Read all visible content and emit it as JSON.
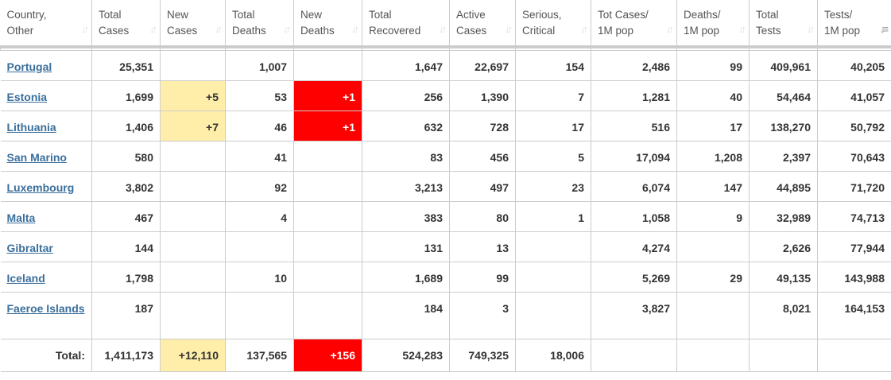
{
  "headers": [
    {
      "l1": "Country,",
      "l2": "Other"
    },
    {
      "l1": "Total",
      "l2": "Cases"
    },
    {
      "l1": "New",
      "l2": "Cases"
    },
    {
      "l1": "Total",
      "l2": "Deaths"
    },
    {
      "l1": "New",
      "l2": "Deaths"
    },
    {
      "l1": "Total",
      "l2": "Recovered"
    },
    {
      "l1": "Active",
      "l2": "Cases"
    },
    {
      "l1": "Serious,",
      "l2": "Critical"
    },
    {
      "l1": "Tot Cases/",
      "l2": "1M pop"
    },
    {
      "l1": "Deaths/",
      "l2": "1M pop"
    },
    {
      "l1": "Total",
      "l2": "Tests"
    },
    {
      "l1": "Tests/",
      "l2": "1M pop"
    }
  ],
  "sort_icon": "sort-arrows-icon",
  "active_sort_column": 11,
  "rows": [
    [
      "Portugal",
      "25,351",
      "",
      "1,007",
      "",
      "1,647",
      "22,697",
      "154",
      "2,486",
      "99",
      "409,961",
      "40,205"
    ],
    [
      "Estonia",
      "1,699",
      "+5",
      "53",
      "+1",
      "256",
      "1,390",
      "7",
      "1,281",
      "40",
      "54,464",
      "41,057"
    ],
    [
      "Lithuania",
      "1,406",
      "+7",
      "46",
      "+1",
      "632",
      "728",
      "17",
      "516",
      "17",
      "138,270",
      "50,792"
    ],
    [
      "San Marino",
      "580",
      "",
      "41",
      "",
      "83",
      "456",
      "5",
      "17,094",
      "1,208",
      "2,397",
      "70,643"
    ],
    [
      "Luxembourg",
      "3,802",
      "",
      "92",
      "",
      "3,213",
      "497",
      "23",
      "6,074",
      "147",
      "44,895",
      "71,720"
    ],
    [
      "Malta",
      "467",
      "",
      "4",
      "",
      "383",
      "80",
      "1",
      "1,058",
      "9",
      "32,989",
      "74,713"
    ],
    [
      "Gibraltar",
      "144",
      "",
      "",
      "",
      "131",
      "13",
      "",
      "4,274",
      "",
      "2,626",
      "77,944"
    ],
    [
      "Iceland",
      "1,798",
      "",
      "10",
      "",
      "1,689",
      "99",
      "",
      "5,269",
      "29",
      "49,135",
      "143,988"
    ],
    [
      "Faeroe Islands",
      "187",
      "",
      "",
      "",
      "184",
      "3",
      "",
      "3,827",
      "",
      "8,021",
      "164,153"
    ]
  ],
  "total": [
    "Total:",
    "1,411,173",
    "+12,110",
    "137,565",
    "+156",
    "524,283",
    "749,325",
    "18,006",
    "",
    "",
    "",
    ""
  ],
  "colors": {
    "new_cases": "#ffeeaa",
    "new_deaths": "#ff0000",
    "link": "#3a6f9c"
  }
}
